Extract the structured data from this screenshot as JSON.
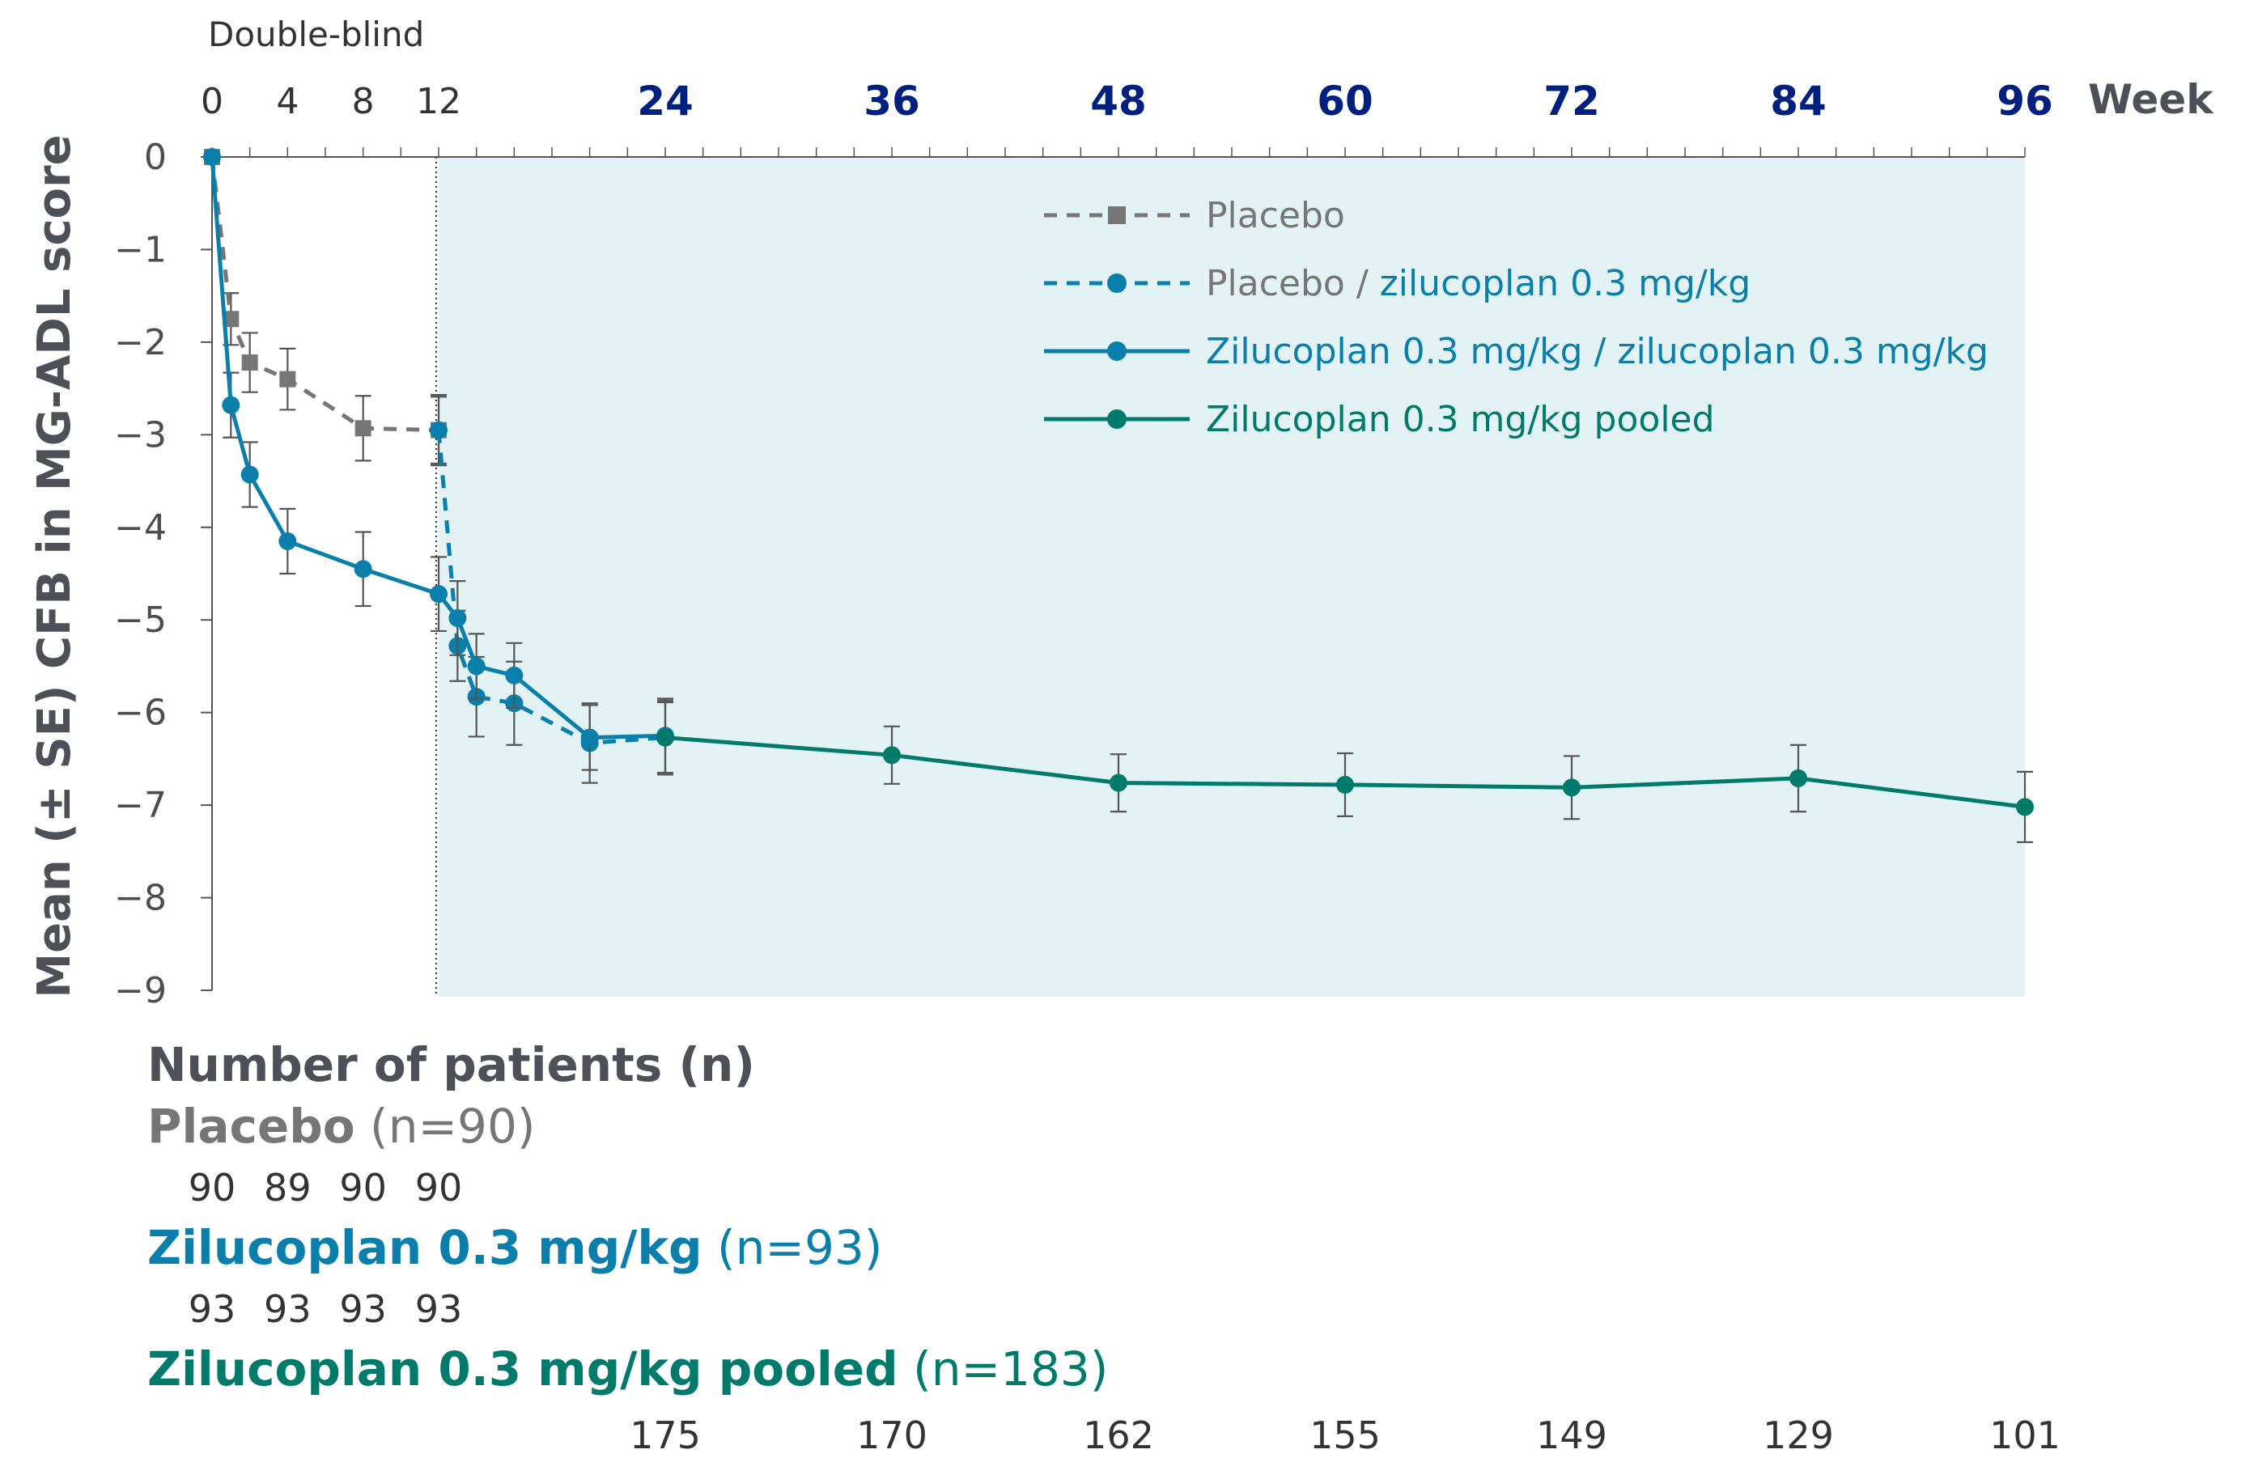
{
  "chart_data": {
    "type": "line",
    "top_label": "Double-blind",
    "ylabel": "Mean (± SE) CFB in MG-ADL score",
    "xunit_label": "Week",
    "xlim": [
      0,
      96
    ],
    "ylim": [
      -9,
      0
    ],
    "x_ticks_small": [
      0,
      4,
      8,
      12
    ],
    "x_ticks_big": [
      24,
      36,
      48,
      60,
      72,
      84,
      96
    ],
    "y_ticks": [
      "0",
      "−1",
      "−2",
      "−3",
      "−4",
      "−5",
      "−6",
      "−7",
      "−8",
      "−9"
    ],
    "y_tick_values": [
      0,
      -1,
      -2,
      -3,
      -4,
      -5,
      -6,
      -7,
      -8,
      -9
    ],
    "open_label_shaded_from_week": 12,
    "legend_placement": "top-right",
    "series": [
      {
        "id": "placebo",
        "name": "Placebo",
        "style": "dashed",
        "marker": "square",
        "color": "#767676",
        "x": [
          0,
          1,
          2,
          4,
          8,
          12
        ],
        "y": [
          0,
          -1.75,
          -2.22,
          -2.4,
          -2.93,
          -2.95
        ],
        "se": [
          0,
          0.28,
          0.32,
          0.33,
          0.35,
          0.36
        ]
      },
      {
        "id": "placebo_zilu",
        "name": "Placebo / zilucoplan 0.3 mg/kg",
        "name_parts": [
          "Placebo",
          " / ",
          "zilucoplan 0.3 mg/kg"
        ],
        "style": "dashed",
        "marker": "circle",
        "color": "#0a7fac",
        "x": [
          12,
          13,
          14,
          16,
          20,
          24
        ],
        "y": [
          -2.95,
          -5.28,
          -5.83,
          -5.9,
          -6.33,
          -6.27
        ],
        "se": [
          0.38,
          0.38,
          0.43,
          0.45,
          0.43,
          0.4
        ]
      },
      {
        "id": "zilu_zilu",
        "name": "Zilucoplan 0.3 mg/kg / zilucoplan 0.3 mg/kg",
        "style": "solid",
        "marker": "circle",
        "color": "#0a7fac",
        "x": [
          0,
          1,
          2,
          4,
          8,
          12,
          13,
          14,
          16,
          20,
          24
        ],
        "y": [
          0,
          -2.68,
          -3.43,
          -4.15,
          -4.45,
          -4.72,
          -4.98,
          -5.5,
          -5.6,
          -6.27,
          -6.25
        ],
        "se": [
          0,
          0.35,
          0.35,
          0.35,
          0.4,
          0.4,
          0.4,
          0.35,
          0.35,
          0.35,
          0.4
        ]
      },
      {
        "id": "pooled",
        "name": "Zilucoplan 0.3 mg/kg pooled",
        "style": "solid",
        "marker": "circle",
        "color": "#007a6a",
        "x": [
          24,
          36,
          48,
          60,
          72,
          84,
          96
        ],
        "y": [
          -6.27,
          -6.46,
          -6.76,
          -6.78,
          -6.81,
          -6.71,
          -7.02
        ],
        "se": [
          0.38,
          0.31,
          0.31,
          0.34,
          0.34,
          0.36,
          0.38
        ]
      }
    ],
    "patients_table": {
      "heading": "Number of patients (n)",
      "rows": [
        {
          "label": "Placebo",
          "n_label": " (n=90)",
          "color": "#767676",
          "n_color": "#767676",
          "weeks": [
            0,
            4,
            8,
            12
          ],
          "values": [
            "90",
            "89",
            "90",
            "90"
          ]
        },
        {
          "label": "Zilucoplan 0.3 mg/kg",
          "n_label": "  (n=93)",
          "color": "#0a7fac",
          "n_color": "#0a7fac",
          "weeks": [
            0,
            4,
            8,
            12
          ],
          "values": [
            "93",
            "93",
            "93",
            "93"
          ]
        },
        {
          "label": "Zilucoplan 0.3 mg/kg pooled",
          "n_label": " (n=183)",
          "color": "#007a6a",
          "n_color": "#007a6a",
          "weeks": [
            24,
            36,
            48,
            60,
            72,
            84,
            96
          ],
          "values": [
            "175",
            "170",
            "162",
            "155",
            "149",
            "129",
            "101"
          ]
        }
      ]
    },
    "colors": {
      "shade": "#e3f2f5",
      "error_bar": "#555555",
      "axis": "#555555"
    }
  }
}
